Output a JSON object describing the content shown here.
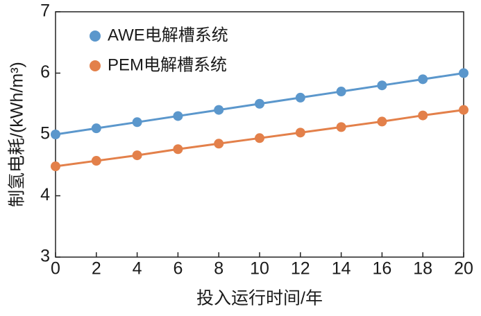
{
  "chart_data": {
    "type": "line",
    "x_label": "投入运行时间/年",
    "y_label": "制氢电耗/(kWh/m³)",
    "x": [
      0,
      2,
      4,
      6,
      8,
      10,
      12,
      14,
      16,
      18,
      20
    ],
    "series": [
      {
        "name": "AWE电解槽系统",
        "color": "#5b97cc",
        "values": [
          5.0,
          5.1,
          5.2,
          5.3,
          5.4,
          5.5,
          5.6,
          5.7,
          5.8,
          5.9,
          6.0
        ]
      },
      {
        "name": "PEM电解槽系统",
        "color": "#e3804a",
        "values": [
          4.48,
          4.57,
          4.66,
          4.76,
          4.85,
          4.94,
          5.03,
          5.12,
          5.21,
          5.31,
          5.4
        ]
      }
    ],
    "xlim": [
      0,
      20
    ],
    "xticks": [
      0,
      2,
      4,
      6,
      8,
      10,
      12,
      14,
      16,
      18,
      20
    ],
    "ylim": [
      3,
      7
    ],
    "yticks": [
      3,
      4,
      5,
      6,
      7
    ],
    "legend": "upper left"
  }
}
